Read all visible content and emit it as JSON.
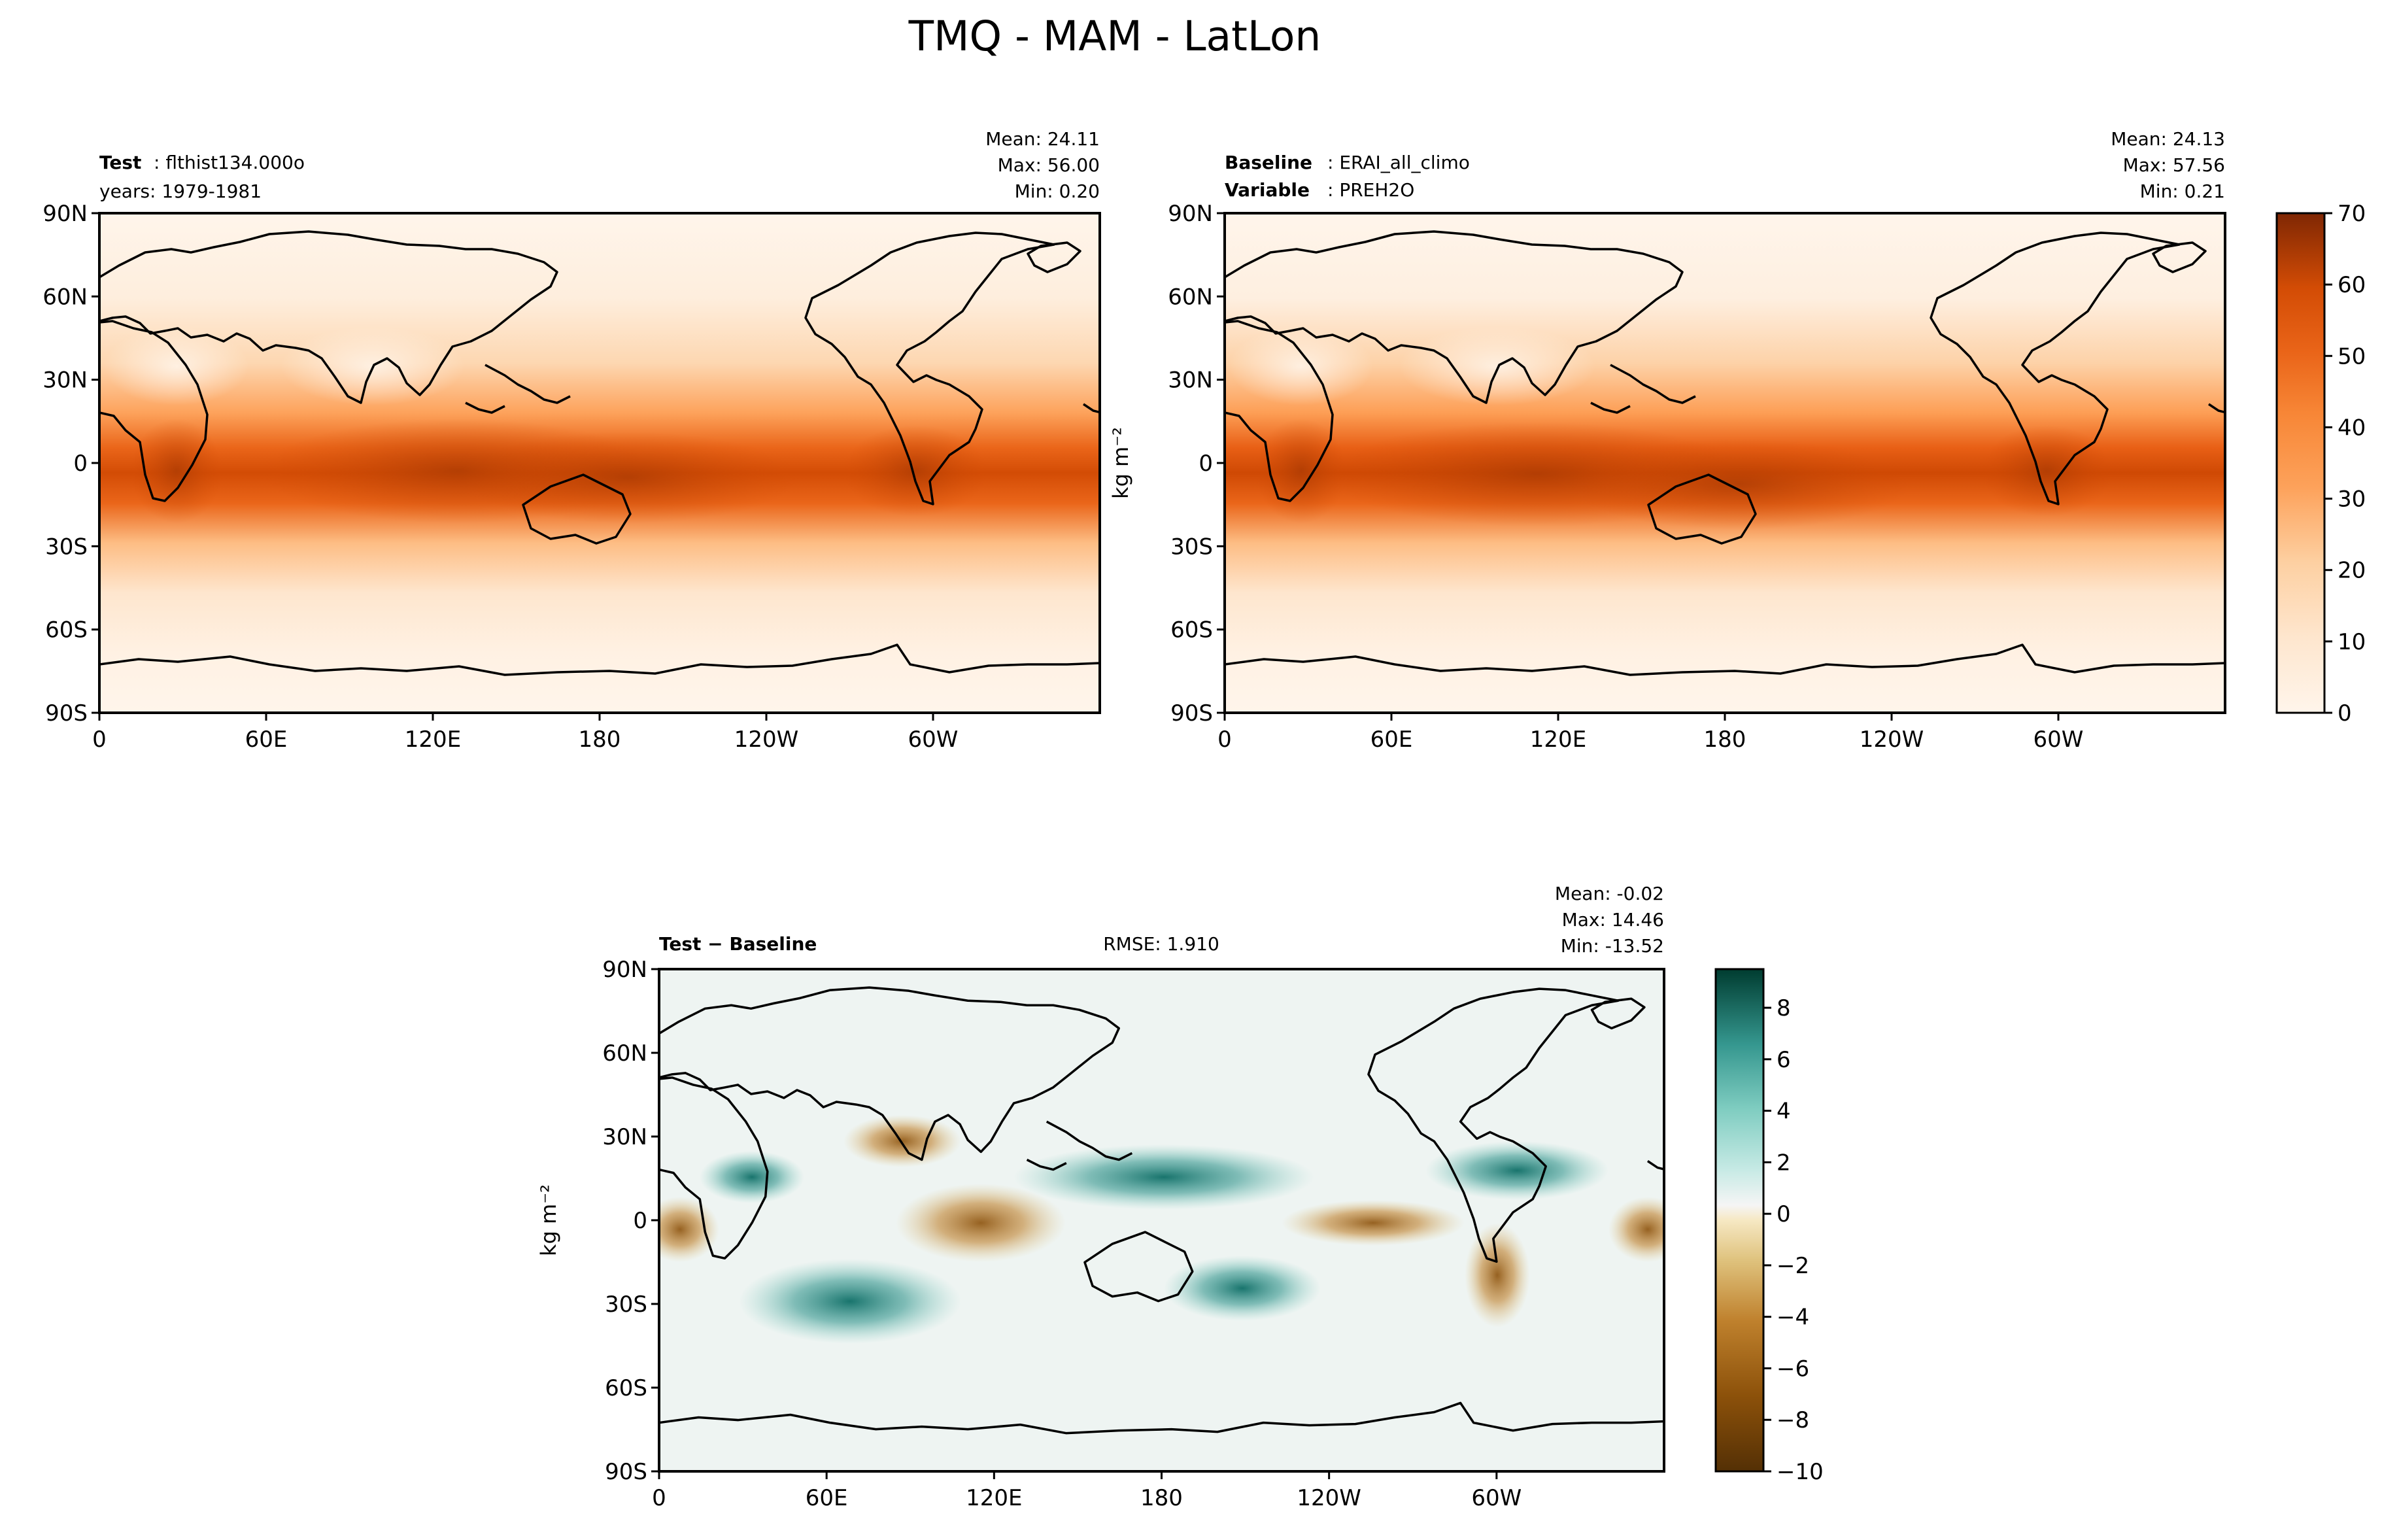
{
  "figure": {
    "title": "TMQ - MAM - LatLon"
  },
  "colors": {
    "seq": [
      "#fff5eb",
      "#fee6ce",
      "#fdd7b1",
      "#fdbd84",
      "#fda25b",
      "#f78636",
      "#ea6519",
      "#d34c05",
      "#aa3a03",
      "#82290b"
    ],
    "div_neg": [
      "#543005",
      "#8c510a",
      "#bf812d",
      "#dfc27d",
      "#f6e8c3"
    ],
    "div_pos": [
      "#c7eae5",
      "#80cdc1",
      "#35978f",
      "#01665e",
      "#003c30"
    ],
    "diff_background": "#eef4f2",
    "coast": "#000000"
  },
  "axes_ticks": {
    "lat": [
      "90N",
      "60N",
      "30N",
      "0",
      "30S",
      "60S",
      "90S"
    ],
    "lon": [
      "0",
      "60E",
      "120E",
      "180",
      "120W",
      "60W"
    ]
  },
  "panels": {
    "test": {
      "title_bold": "Test",
      "title_value": "flthist134.000o",
      "subtitle": "years: 1979-1981",
      "mean": "Mean: 24.11",
      "max": "Max: 56.00",
      "min": "Min:  0.20"
    },
    "baseline": {
      "title_bold": "Baseline",
      "title_value": "ERAI_all_climo",
      "var_bold": "Variable",
      "var_value": "PREH2O",
      "mean": "Mean: 24.13",
      "max": "Max: 57.56",
      "min": "Min:  0.21",
      "ylabel": "kg m⁻²"
    },
    "diff": {
      "title": "Test − Baseline",
      "rmse": "RMSE: 1.910",
      "mean": "Mean: -0.02",
      "max": "Max: 14.46",
      "min": "Min: -13.52",
      "ylabel": "kg m⁻²"
    }
  },
  "colorbars": {
    "top": {
      "ticks": [
        "0",
        "10",
        "20",
        "30",
        "40",
        "50",
        "60",
        "70"
      ],
      "range": [
        0,
        70
      ]
    },
    "bottom": {
      "ticks": [
        "−10",
        "−8",
        "−6",
        "−4",
        "−2",
        "0",
        "2",
        "4",
        "6",
        "8"
      ],
      "range": [
        -10,
        9.5
      ]
    }
  },
  "chart_data": [
    {
      "type": "heatmap",
      "panel": "Test",
      "variable": "TMQ",
      "units": "kg m⁻²",
      "stats": {
        "mean": 24.11,
        "max": 56.0,
        "min": 0.2
      },
      "lat_range": [
        -90,
        90
      ],
      "lon_range": [
        0,
        360
      ],
      "zonal_mean_profile": {
        "lat": [
          90,
          60,
          30,
          0,
          -30,
          -60,
          -90
        ],
        "value": [
          3,
          8,
          22,
          48,
          26,
          9,
          2
        ]
      }
    },
    {
      "type": "heatmap",
      "panel": "Baseline",
      "variable": "PREH2O",
      "units": "kg m⁻²",
      "stats": {
        "mean": 24.13,
        "max": 57.56,
        "min": 0.21
      },
      "lat_range": [
        -90,
        90
      ],
      "lon_range": [
        0,
        360
      ],
      "zonal_mean_profile": {
        "lat": [
          90,
          60,
          30,
          0,
          -30,
          -60,
          -90
        ],
        "value": [
          3,
          8,
          22,
          49,
          26,
          9,
          2
        ]
      }
    },
    {
      "type": "heatmap",
      "panel": "Test - Baseline",
      "units": "kg m⁻²",
      "stats": {
        "mean": -0.02,
        "max": 14.46,
        "min": -13.52,
        "rmse": 1.91
      },
      "lat_range": [
        -90,
        90
      ],
      "lon_range": [
        0,
        360
      ]
    }
  ]
}
